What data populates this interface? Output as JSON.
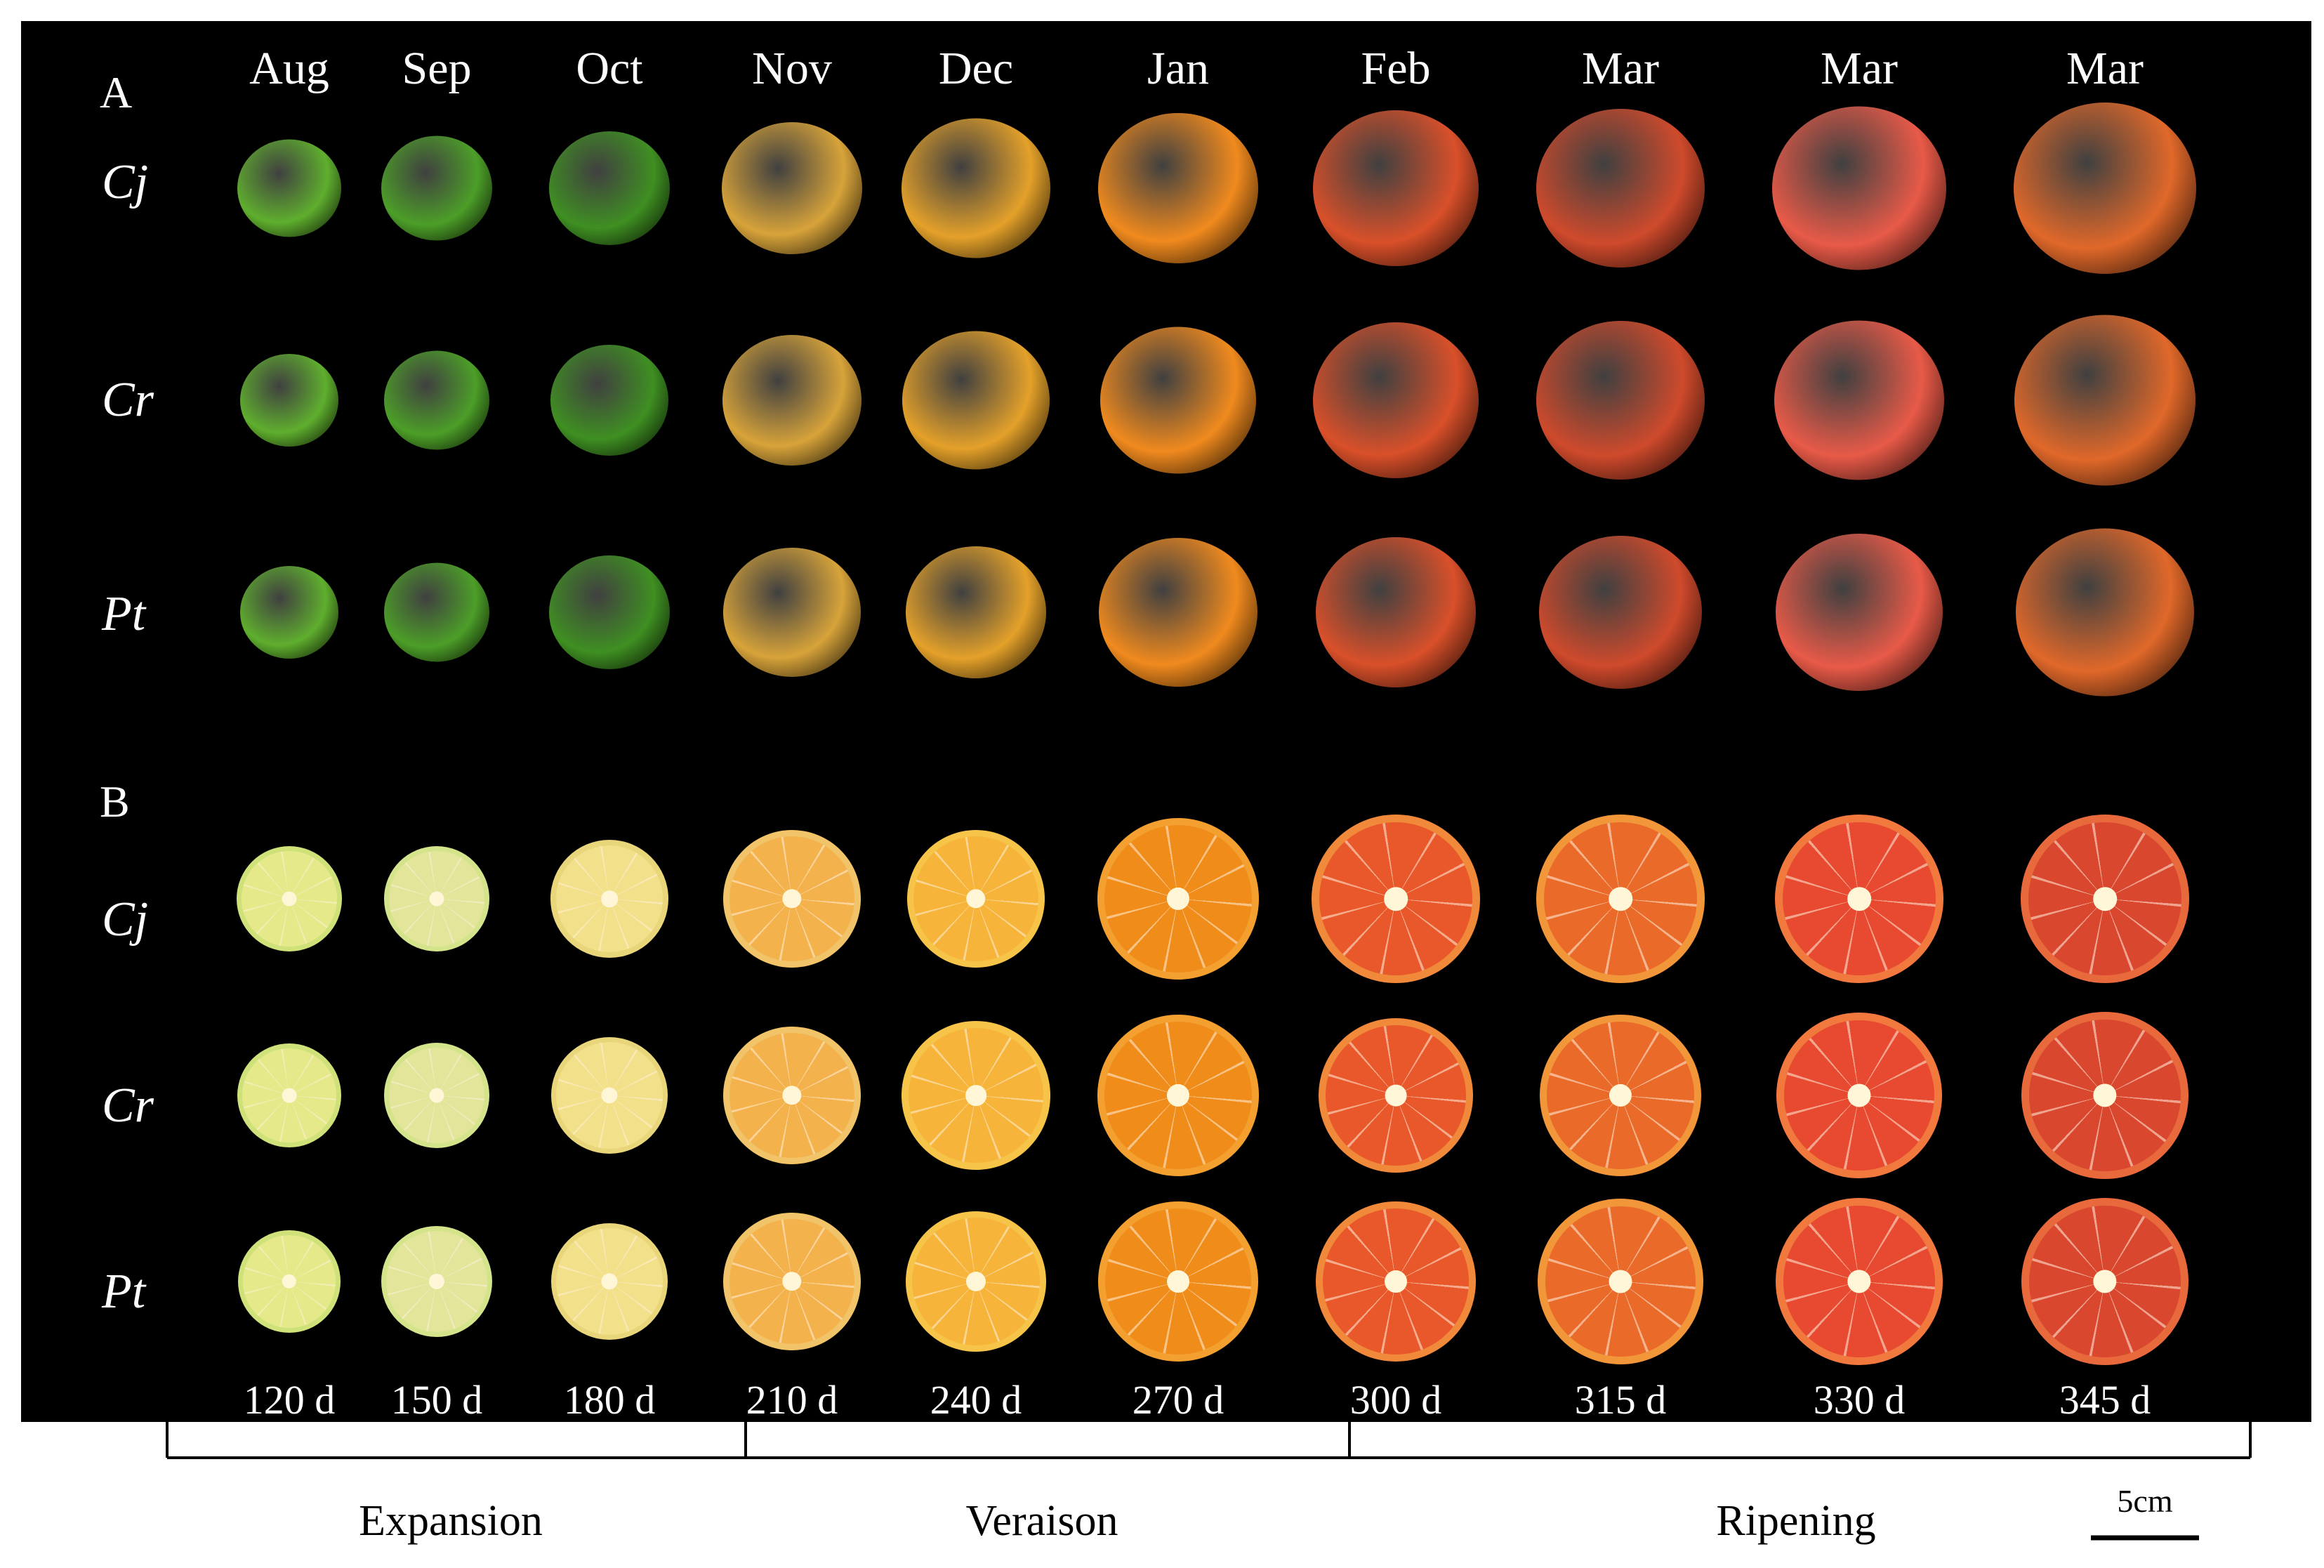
{
  "panels": {
    "a_label": "A",
    "b_label": "B"
  },
  "rows": [
    "Cj",
    "Cr",
    "Pt"
  ],
  "months": [
    "Aug",
    "Sep",
    "Oct",
    "Nov",
    "Dec",
    "Jan",
    "Feb",
    "Mar",
    "Mar",
    "Mar"
  ],
  "days": [
    "120 d",
    "150 d",
    "180 d",
    "210 d",
    "240 d",
    "270 d",
    "300 d",
    "315 d",
    "330 d",
    "345 d"
  ],
  "stages": [
    "Expansion",
    "Veraison",
    "Ripening"
  ],
  "scale_bar": "5cm",
  "colors": {
    "whole": [
      "#5fae2e",
      "#4c9e28",
      "#3f8f22",
      "#d7a33a",
      "#e4a12a",
      "#f08a1e",
      "#d9502a",
      "#cf4a2c",
      "#e85a48",
      "#e0682a"
    ],
    "pulp": [
      "#e6e98a",
      "#e2e59a",
      "#f2e08a",
      "#f3b24c",
      "#f6b53a",
      "#f08c1a",
      "#e9582a",
      "#ea6a2a",
      "#e74a30",
      "#d9472f"
    ],
    "rind": [
      "#cfe27a",
      "#d4e48a",
      "#e9d57a",
      "#f2c46a",
      "#f7c44a",
      "#f4a030",
      "#f08a3a",
      "#f2963a",
      "#f1793e",
      "#e86a3c"
    ]
  }
}
